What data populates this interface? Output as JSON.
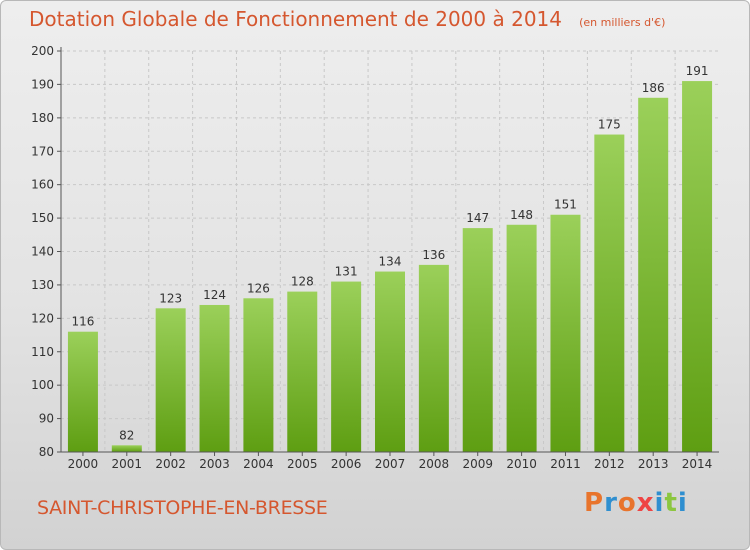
{
  "header": {
    "title": "Dotation Globale de Fonctionnement de 2000 à 2014",
    "unit": "(en milliers d'€)"
  },
  "footer": {
    "commune": "SAINT-CHRISTOPHE-EN-BRESSE",
    "logo": "Proxiti"
  },
  "colors": {
    "title": "#d5572f",
    "bar_top": "#9bd05a",
    "bar_bottom": "#5e9e12",
    "axis": "#555555",
    "grid": "#c8c8c8",
    "logo_letters": [
      "#e8742c",
      "#2f8fd0",
      "#e8742c",
      "#ef4444",
      "#2f8fd0",
      "#8cc63f",
      "#2f8fd0"
    ]
  },
  "chart_data": {
    "type": "bar",
    "title": "Dotation Globale de Fonctionnement de 2000 à 2014",
    "xlabel": "",
    "ylabel": "",
    "categories": [
      "2000",
      "2001",
      "2002",
      "2003",
      "2004",
      "2005",
      "2006",
      "2007",
      "2008",
      "2009",
      "2010",
      "2011",
      "2012",
      "2013",
      "2014"
    ],
    "values": [
      116,
      82,
      123,
      124,
      126,
      128,
      131,
      134,
      136,
      147,
      148,
      151,
      175,
      186,
      191
    ],
    "ylim": [
      80,
      200
    ],
    "yticks": [
      80,
      90,
      100,
      110,
      120,
      130,
      140,
      150,
      160,
      170,
      180,
      190,
      200
    ],
    "grid": true,
    "legend": "none"
  }
}
